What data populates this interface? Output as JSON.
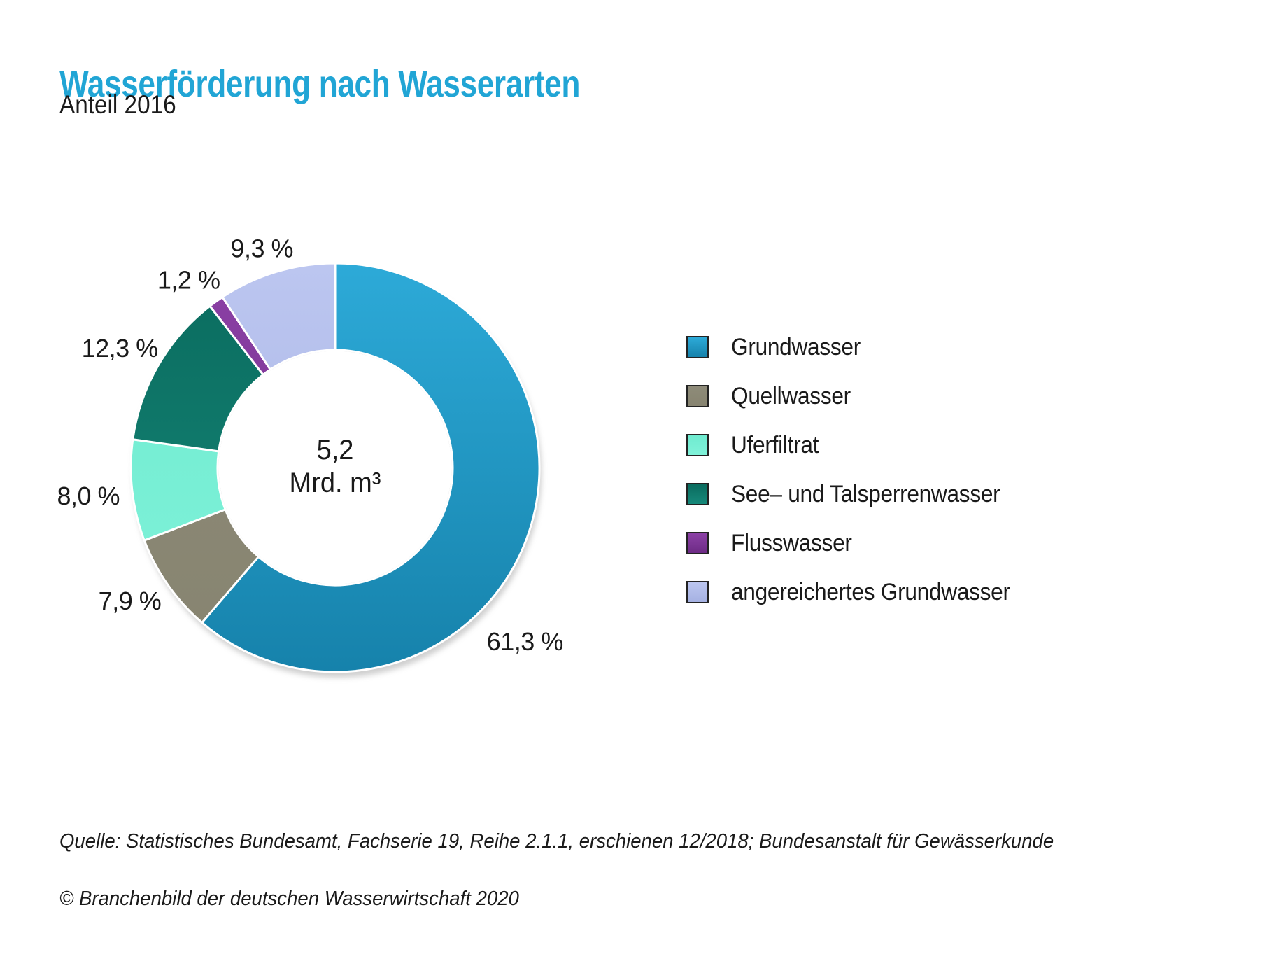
{
  "header": {
    "title": "Wasserförderung nach Wasserarten",
    "subtitle": "Anteil 2016",
    "title_color": "#21A5D5"
  },
  "chart_data": {
    "type": "pie",
    "style": "donut",
    "title": "Wasserförderung nach Wasserarten",
    "subtitle": "Anteil 2016",
    "units": "percent",
    "legend_position": "right",
    "start_angle_deg": 0,
    "direction": "clockwise",
    "total": {
      "value": "5,2",
      "unit": "Mrd. m³"
    },
    "categories": [
      "Grundwasser",
      "Quellwasser",
      "Uferfiltrat",
      "See– und Talsperrenwasser",
      "Flusswasser",
      "angereichertes Grundwasser"
    ],
    "values": [
      61.3,
      7.9,
      8.0,
      12.3,
      1.2,
      9.3
    ],
    "segments": [
      {
        "label": "Grundwasser",
        "value": 61.3,
        "value_label": "61,3 %",
        "color": "#1F9CC9",
        "color_top": "#2DAAD8",
        "color_bottom": "#1682AB",
        "label_angle_deg": 132.5,
        "label_radius": 368
      },
      {
        "label": "Quellwasser",
        "value": 7.9,
        "value_label": "7,9 %",
        "color": "#8D8A77",
        "color_top": "#8E8B79",
        "color_bottom": "#878470",
        "label_angle_deg": 237,
        "label_radius": 350
      },
      {
        "label": "Uferfiltrat",
        "value": 8.0,
        "value_label": "8,0 %",
        "color": "#7CEBD1",
        "color_top": "#6FEBD0",
        "color_bottom": "#80F2D9",
        "label_angle_deg": 263.5,
        "label_radius": 355
      },
      {
        "label": "See– und Talsperrenwasser",
        "value": 12.3,
        "value_label": "12,3 %",
        "color": "#0D7A6B",
        "color_top": "#0A6B5E",
        "color_bottom": "#16897A",
        "label_angle_deg": 299,
        "label_radius": 352
      },
      {
        "label": "Flusswasser",
        "value": 1.2,
        "value_label": "1,2 %",
        "color": "#7C2F95",
        "color_top": "#8C41A6",
        "color_bottom": "#6D2B85",
        "label_angle_deg": 322,
        "label_radius": 340
      },
      {
        "label": "angereichertes Grundwasser",
        "value": 9.3,
        "value_label": "9,3 %",
        "color": "#9FACE0",
        "color_top": "#BCC6F0",
        "color_bottom": "#A5B1E2",
        "label_angle_deg": 341.5,
        "label_radius": 330
      }
    ]
  },
  "footer": {
    "source": "Quelle: Statistisches Bundesamt, Fachserie 19, Reihe 2.1.1, erschienen 12/2018; Bundesanstalt für Gewässerkunde",
    "copyright": "© Branchenbild der deutschen Wasserwirtschaft 2020"
  }
}
